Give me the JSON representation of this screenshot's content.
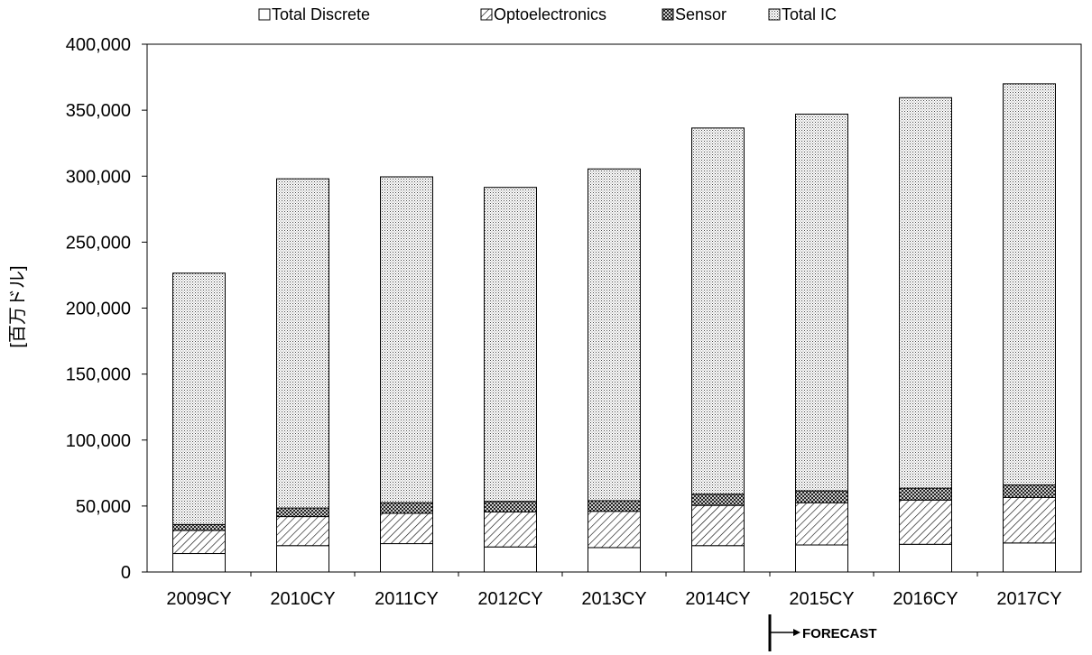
{
  "chart_data": {
    "type": "bar",
    "stacked": true,
    "title": "",
    "xlabel": "",
    "ylabel": "[百万ドル]",
    "ylim": [
      0,
      400000
    ],
    "yticks": [
      0,
      50000,
      100000,
      150000,
      200000,
      250000,
      300000,
      350000,
      400000
    ],
    "ytick_labels": [
      "0",
      "50,000",
      "100,000",
      "150,000",
      "200,000",
      "250,000",
      "300,000",
      "350,000",
      "400,000"
    ],
    "grid": false,
    "legend_position": "top",
    "categories": [
      "2009CY",
      "2010CY",
      "2011CY",
      "2012CY",
      "2013CY",
      "2014CY",
      "2015CY",
      "2016CY",
      "2017CY"
    ],
    "series": [
      {
        "name": "Total Discrete",
        "pattern": "plain",
        "values": [
          14000,
          20000,
          21500,
          19000,
          18500,
          20000,
          20500,
          21000,
          22000
        ]
      },
      {
        "name": "Optoelectronics",
        "pattern": "diagonal",
        "values": [
          17500,
          22000,
          23000,
          26500,
          27500,
          30500,
          32000,
          33500,
          34500
        ]
      },
      {
        "name": "Sensor",
        "pattern": "crosshatch",
        "values": [
          4500,
          6500,
          8000,
          8000,
          8000,
          8500,
          9000,
          9000,
          9500
        ]
      },
      {
        "name": "Total IC",
        "pattern": "dotted",
        "values": [
          190500,
          249500,
          247000,
          238000,
          251500,
          277500,
          285500,
          296000,
          304000
        ]
      }
    ],
    "annotation": {
      "text": "FORECAST",
      "start_category": "2015CY"
    },
    "colors": {
      "bar_stroke": "#000000",
      "axis": "#000000",
      "background": "#ffffff"
    }
  }
}
